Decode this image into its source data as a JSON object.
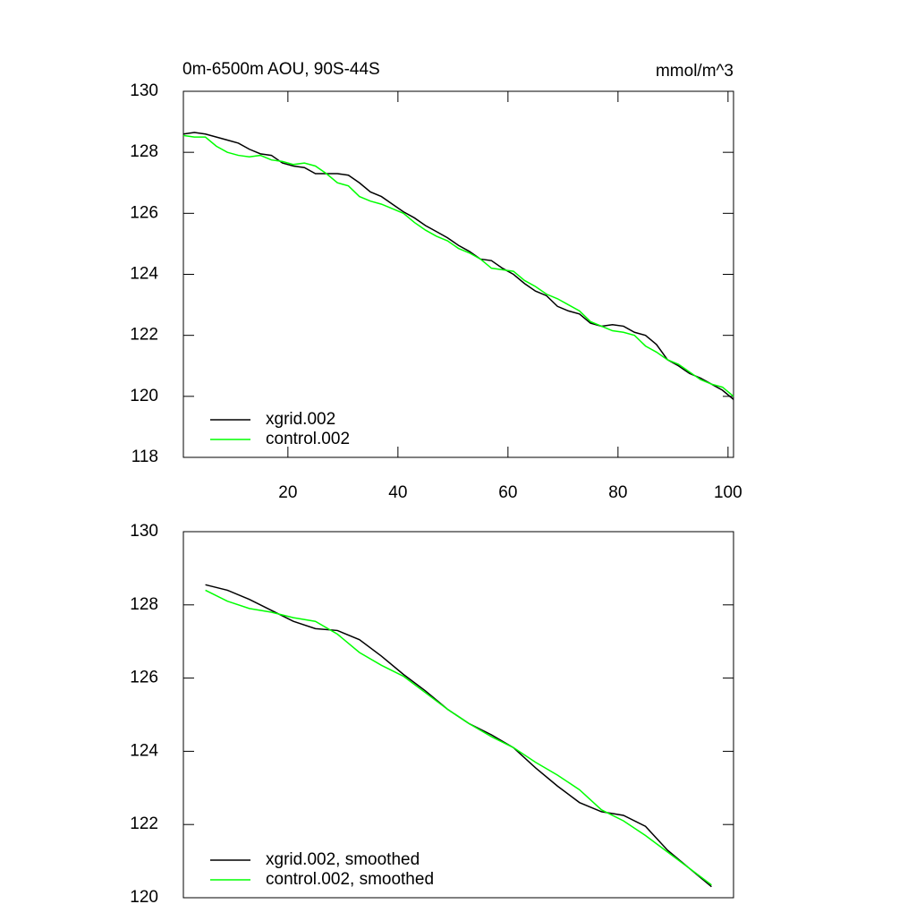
{
  "chart_data": [
    {
      "type": "line",
      "title": "0m-6500m AOU, 90S-44S",
      "subtitle": "mmol/m^3",
      "x": [
        1,
        3,
        5,
        7,
        9,
        11,
        13,
        15,
        17,
        19,
        21,
        23,
        25,
        27,
        29,
        31,
        33,
        35,
        37,
        39,
        41,
        43,
        45,
        47,
        49,
        51,
        53,
        55,
        57,
        59,
        61,
        63,
        65,
        67,
        69,
        71,
        73,
        75,
        77,
        79,
        81,
        83,
        85,
        87,
        89,
        91,
        93,
        95,
        97,
        99,
        101
      ],
      "series": [
        {
          "name": "xgrid.002",
          "color": "#000000",
          "values": [
            128.6,
            128.65,
            128.6,
            128.5,
            128.4,
            128.3,
            128.1,
            127.95,
            127.9,
            127.65,
            127.55,
            127.5,
            127.3,
            127.3,
            127.3,
            127.25,
            127.0,
            126.7,
            126.55,
            126.3,
            126.05,
            125.85,
            125.6,
            125.4,
            125.2,
            124.95,
            124.75,
            124.5,
            124.45,
            124.2,
            124.0,
            123.7,
            123.45,
            123.3,
            122.95,
            122.8,
            122.7,
            122.4,
            122.3,
            122.35,
            122.3,
            122.1,
            122.0,
            121.7,
            121.2,
            121.0,
            120.75,
            120.6,
            120.4,
            120.2,
            119.9
          ]
        },
        {
          "name": "control.002",
          "color": "#00ff00",
          "values": [
            128.55,
            128.5,
            128.5,
            128.2,
            128.0,
            127.9,
            127.85,
            127.9,
            127.75,
            127.7,
            127.6,
            127.65,
            127.55,
            127.3,
            127.0,
            126.9,
            126.55,
            126.4,
            126.3,
            126.15,
            126.0,
            125.7,
            125.45,
            125.25,
            125.1,
            124.85,
            124.7,
            124.5,
            124.2,
            124.15,
            124.1,
            123.8,
            123.6,
            123.35,
            123.2,
            123.0,
            122.8,
            122.45,
            122.3,
            122.15,
            122.1,
            122.0,
            121.65,
            121.45,
            121.2,
            121.05,
            120.8,
            120.55,
            120.4,
            120.3,
            120.0
          ]
        }
      ],
      "xlim": [
        1,
        101
      ],
      "xticks": [
        20,
        40,
        60,
        80,
        100
      ],
      "ylim": [
        118,
        130
      ],
      "yticks": [
        118,
        120,
        122,
        124,
        126,
        128,
        130
      ]
    },
    {
      "type": "line",
      "x": [
        5,
        9,
        13,
        17,
        21,
        25,
        29,
        33,
        37,
        41,
        45,
        49,
        53,
        57,
        61,
        65,
        69,
        73,
        77,
        81,
        85,
        89,
        93,
        97
      ],
      "series": [
        {
          "name": "xgrid.002, smoothed",
          "color": "#000000",
          "values": [
            128.55,
            128.4,
            128.15,
            127.85,
            127.55,
            127.35,
            127.3,
            127.05,
            126.6,
            126.1,
            125.65,
            125.15,
            124.75,
            124.45,
            124.1,
            123.55,
            123.05,
            122.6,
            122.35,
            122.25,
            121.95,
            121.3,
            120.8,
            120.3
          ]
        },
        {
          "name": "control.002, smoothed",
          "color": "#00ff00",
          "values": [
            128.4,
            128.1,
            127.9,
            127.8,
            127.65,
            127.55,
            127.2,
            126.7,
            126.35,
            126.05,
            125.6,
            125.15,
            124.75,
            124.4,
            124.1,
            123.7,
            123.35,
            122.95,
            122.4,
            122.1,
            121.7,
            121.25,
            120.8,
            120.35
          ]
        }
      ],
      "xlim": [
        1,
        101
      ],
      "ylim": [
        120,
        130
      ],
      "yticks": [
        120,
        122,
        124,
        126,
        128,
        130
      ]
    }
  ]
}
